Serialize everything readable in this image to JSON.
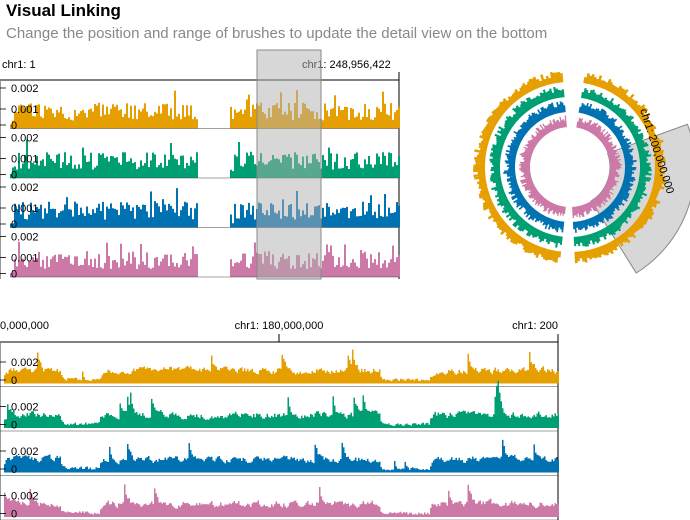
{
  "header": {
    "title": "Visual Linking",
    "subtitle": "Change the position and range of brushes to update the detail view on the bottom"
  },
  "overview": {
    "axis_left_label": "chr1: 1",
    "axis_right_label": "chr1: 248,956,422",
    "tracks": [
      {
        "color": "#e69f00",
        "y_labels": [
          "0.002",
          "0.001",
          "0"
        ]
      },
      {
        "color": "#009e73",
        "y_labels": [
          "0.002",
          "0.001",
          "0"
        ]
      },
      {
        "color": "#0072b2",
        "y_labels": [
          "0.002",
          "0.001",
          "0"
        ]
      },
      {
        "color": "#cc79a7",
        "y_labels": [
          "0.002",
          "0.001",
          "0"
        ]
      }
    ]
  },
  "circular": {
    "brush_label": "chr1: 200,000,000"
  },
  "detail": {
    "axis_labels": [
      "0,000,000",
      "chr1: 180,000,000",
      "chr1: 200"
    ],
    "tracks": [
      {
        "color": "#e69f00",
        "y_labels": [
          "0.002",
          "0"
        ]
      },
      {
        "color": "#009e73",
        "y_labels": [
          "0.002",
          "0"
        ]
      },
      {
        "color": "#0072b2",
        "y_labels": [
          "0.002",
          "0"
        ]
      },
      {
        "color": "#cc79a7",
        "y_labels": [
          "0.002",
          "0"
        ]
      }
    ]
  }
}
